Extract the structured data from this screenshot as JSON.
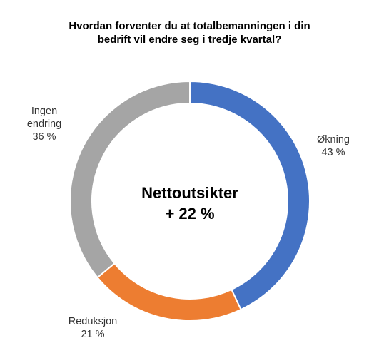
{
  "chart_data": {
    "type": "pie",
    "title_lines": [
      "Hvordan forventer du at totalbemanningen i din",
      "bedrift vil endre seg i tredje kvartal?"
    ],
    "center_label_lines": [
      "Nettoutsikter",
      "+ 22 %"
    ],
    "slices": [
      {
        "label_lines": [
          "Økning"
        ],
        "value": 43,
        "value_label": "43 %",
        "color": "#4472C4"
      },
      {
        "label_lines": [
          "Reduksjon"
        ],
        "value": 21,
        "value_label": "21 %",
        "color": "#ED7D31"
      },
      {
        "label_lines": [
          "Ingen",
          "endring"
        ],
        "value": 36,
        "value_label": "36 %",
        "color": "#A5A5A5"
      }
    ],
    "donut": true,
    "start_angle": "12 o'clock",
    "direction": "clockwise",
    "legend": "none"
  }
}
